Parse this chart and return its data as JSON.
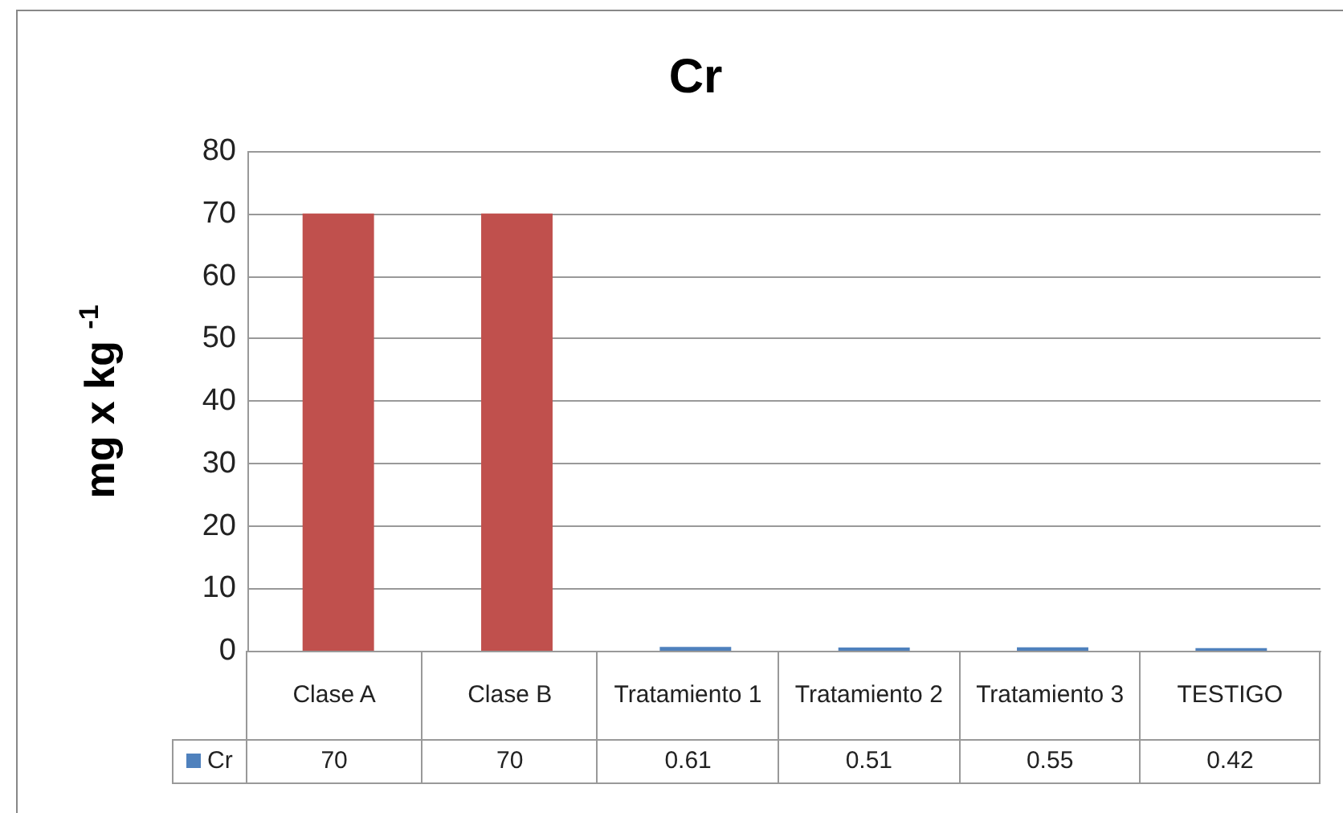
{
  "chart_data": {
    "type": "bar",
    "title": "Cr",
    "ylabel": "mg x kg $^{-1}$",
    "categories": [
      "Clase A",
      "Clase B",
      "Tratamiento 1",
      "Tratamiento 2",
      "Tratamiento 3",
      "TESTIGO"
    ],
    "series": [
      {
        "name": "Cr",
        "color": "#4f81bd",
        "colors": [
          "#c0504d",
          "#c0504d",
          "#4f81bd",
          "#4f81bd",
          "#4f81bd",
          "#4f81bd"
        ],
        "values": [
          70,
          70,
          0.61,
          0.51,
          0.55,
          0.42
        ]
      }
    ],
    "ylim": [
      0,
      80
    ],
    "yticks": [
      0,
      10,
      20,
      30,
      40,
      50,
      60,
      70,
      80
    ],
    "grid": "y",
    "legend": "bottom",
    "data_labels": true
  }
}
